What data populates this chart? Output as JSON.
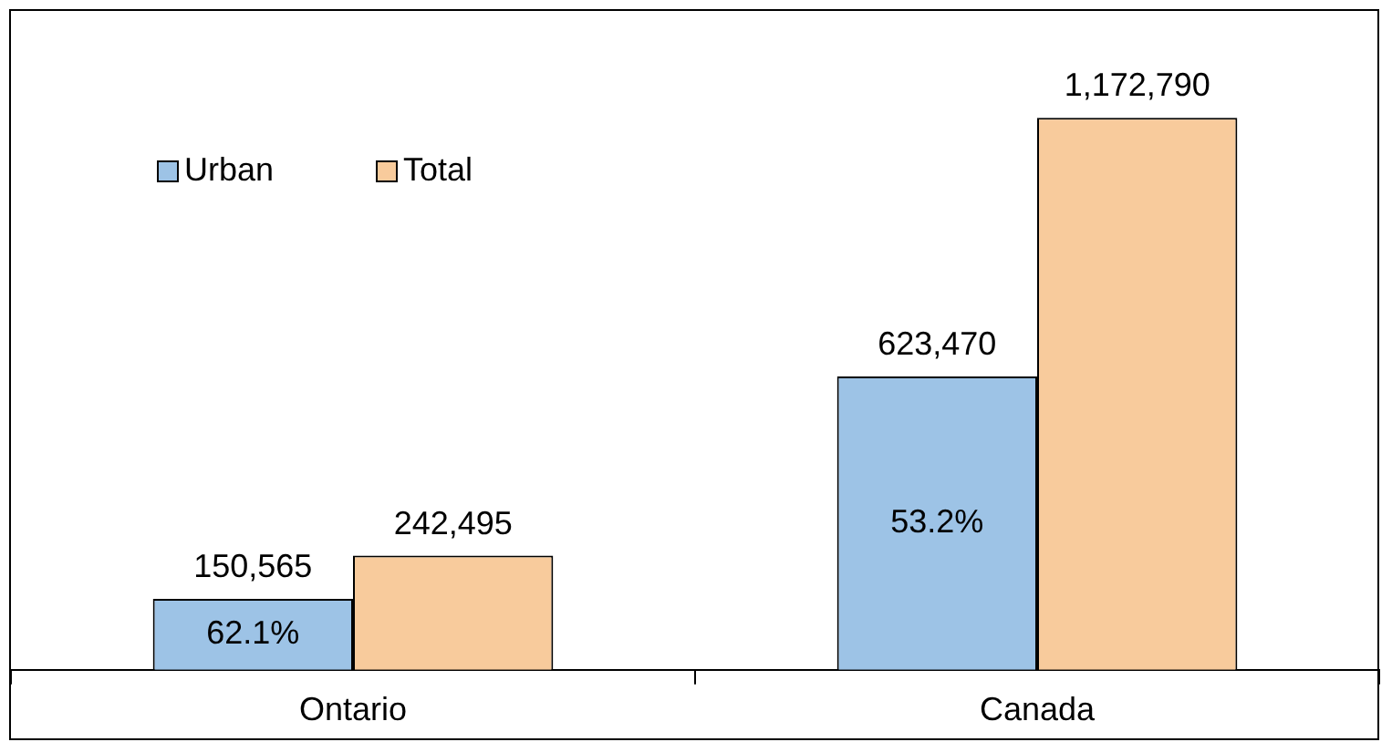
{
  "chart_data": {
    "type": "bar",
    "categories": [
      "Ontario",
      "Canada"
    ],
    "series": [
      {
        "name": "Urban",
        "color": "#9dc3e6",
        "values": [
          150565,
          623470
        ],
        "value_labels": [
          "150,565",
          "623,470"
        ]
      },
      {
        "name": "Total",
        "color": "#f8cb9c",
        "values": [
          242495,
          1172790
        ],
        "value_labels": [
          "242,495",
          "1,172,790"
        ]
      }
    ],
    "legend": "top left",
    "grid": false,
    "tick_labels": "x",
    "annotations": [
      {
        "text": "62.1%",
        "x": "Ontario"
      },
      {
        "text": "53.2%",
        "x": "Canada"
      }
    ]
  }
}
